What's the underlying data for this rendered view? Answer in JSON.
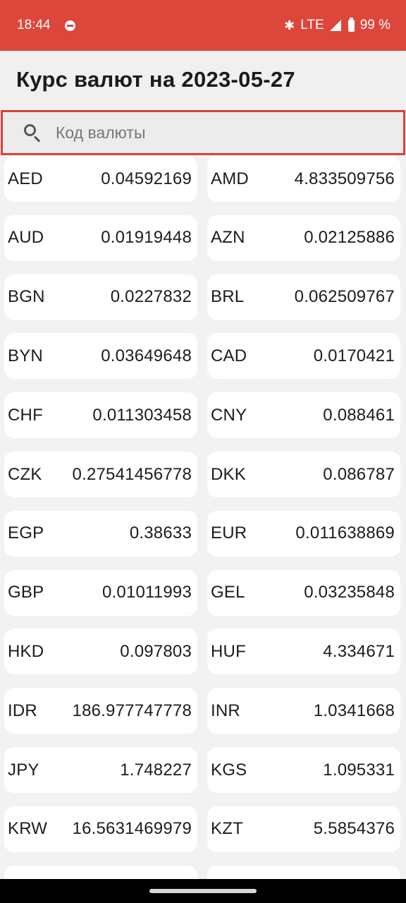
{
  "status": {
    "time": "18:44",
    "network": "LTE",
    "battery": "99 %"
  },
  "header": {
    "title": "Курс валют на 2023-05-27"
  },
  "search": {
    "placeholder": "Код валюты",
    "value": ""
  },
  "rates": [
    {
      "code": "AED",
      "rate": "0.04592169"
    },
    {
      "code": "AMD",
      "rate": "4.833509756"
    },
    {
      "code": "AUD",
      "rate": "0.01919448"
    },
    {
      "code": "AZN",
      "rate": "0.02125886"
    },
    {
      "code": "BGN",
      "rate": "0.0227832"
    },
    {
      "code": "BRL",
      "rate": "0.062509767"
    },
    {
      "code": "BYN",
      "rate": "0.03649648"
    },
    {
      "code": "CAD",
      "rate": "0.0170421"
    },
    {
      "code": "CHF",
      "rate": "0.011303458"
    },
    {
      "code": "CNY",
      "rate": "0.088461"
    },
    {
      "code": "CZK",
      "rate": "0.27541456778"
    },
    {
      "code": "DKK",
      "rate": "0.086787"
    },
    {
      "code": "EGP",
      "rate": "0.38633"
    },
    {
      "code": "EUR",
      "rate": "0.011638869"
    },
    {
      "code": "GBP",
      "rate": "0.01011993"
    },
    {
      "code": "GEL",
      "rate": "0.03235848"
    },
    {
      "code": "HKD",
      "rate": "0.097803"
    },
    {
      "code": "HUF",
      "rate": "4.334671"
    },
    {
      "code": "IDR",
      "rate": "186.977747778"
    },
    {
      "code": "INR",
      "rate": "1.0341668"
    },
    {
      "code": "JPY",
      "rate": "1.748227"
    },
    {
      "code": "KGS",
      "rate": "1.095331"
    },
    {
      "code": "KRW",
      "rate": "16.5631469979"
    },
    {
      "code": "KZT",
      "rate": "5.5854376"
    },
    {
      "code": "",
      "rate": ""
    },
    {
      "code": "",
      "rate": ""
    }
  ],
  "colors": {
    "accent": "#dd463b",
    "card": "#ffffff",
    "background": "#f2f2f2"
  }
}
